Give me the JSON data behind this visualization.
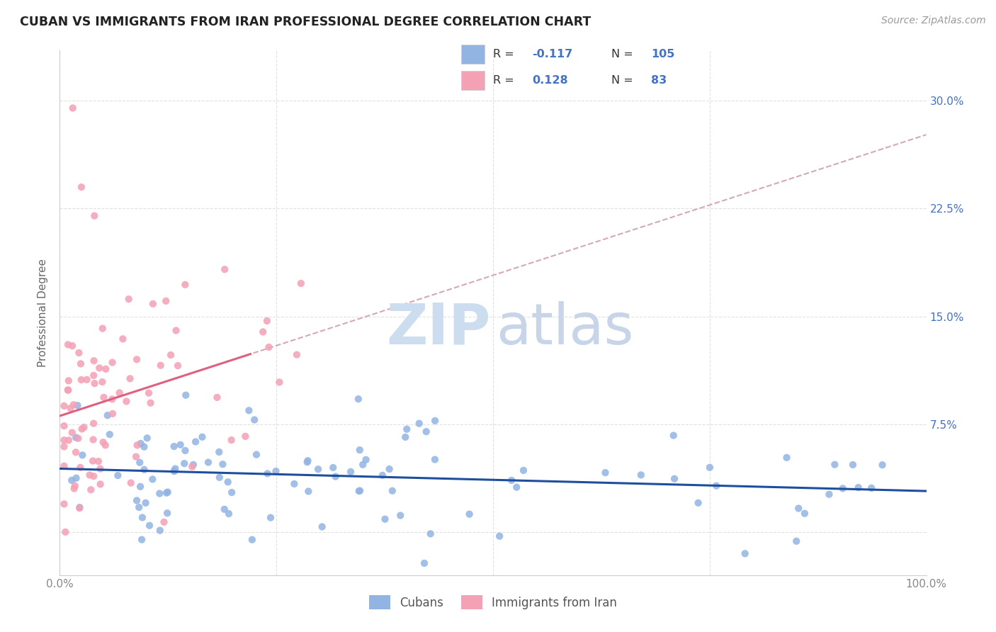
{
  "title": "CUBAN VS IMMIGRANTS FROM IRAN PROFESSIONAL DEGREE CORRELATION CHART",
  "source": "Source: ZipAtlas.com",
  "ylabel": "Professional Degree",
  "xlim": [
    0.0,
    1.0
  ],
  "ylim": [
    -0.03,
    0.335
  ],
  "cubans_R": -0.117,
  "cubans_N": 105,
  "iran_R": 0.128,
  "iran_N": 83,
  "color_cubans": "#92b4e3",
  "color_iran": "#f4a0b5",
  "color_cubans_line": "#1f4e9e",
  "color_iran_line": "#e06080",
  "color_dashed": "#d0a0b0",
  "watermark_zip_color": "#ccddf0",
  "watermark_atlas_color": "#c8d4e8",
  "legend_border_color": "#cccccc",
  "legend_text_color": "#333333",
  "legend_value_color": "#4472c4",
  "grid_color": "#e0e0e0",
  "tick_color": "#888888",
  "ylabel_color": "#666666"
}
